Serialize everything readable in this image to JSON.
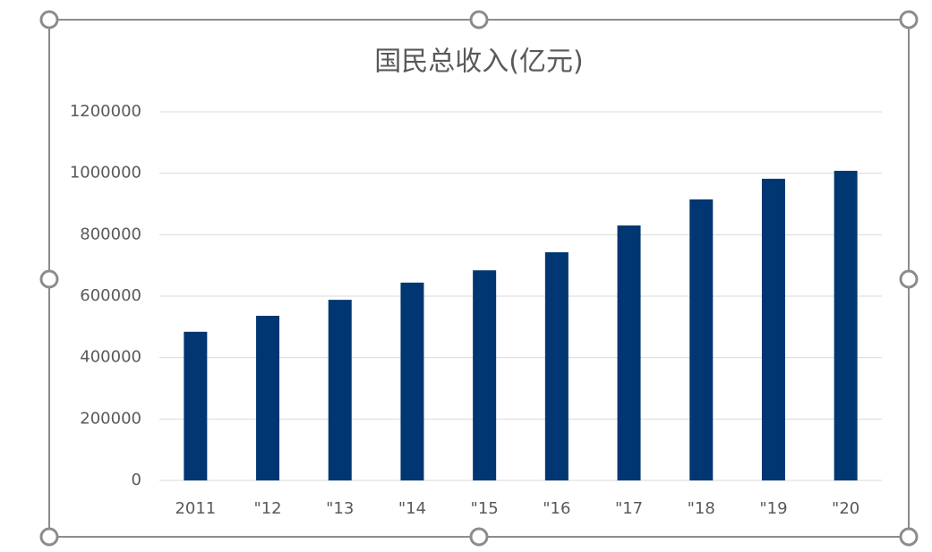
{
  "chart_data": {
    "type": "bar",
    "title": "国民总收入(亿元)",
    "categories": [
      "2011",
      "\"12",
      "\"13",
      "\"14",
      "\"15",
      "\"16",
      "\"17",
      "\"18",
      "\"19",
      "\"20"
    ],
    "values": [
      484000,
      536000,
      588000,
      644000,
      684000,
      743000,
      830000,
      915000,
      982000,
      1008000
    ],
    "color": "#003671",
    "ylim": [
      0,
      1200000
    ],
    "yticks": [
      0,
      200000,
      400000,
      600000,
      800000,
      1000000,
      1200000
    ],
    "grid": true
  }
}
